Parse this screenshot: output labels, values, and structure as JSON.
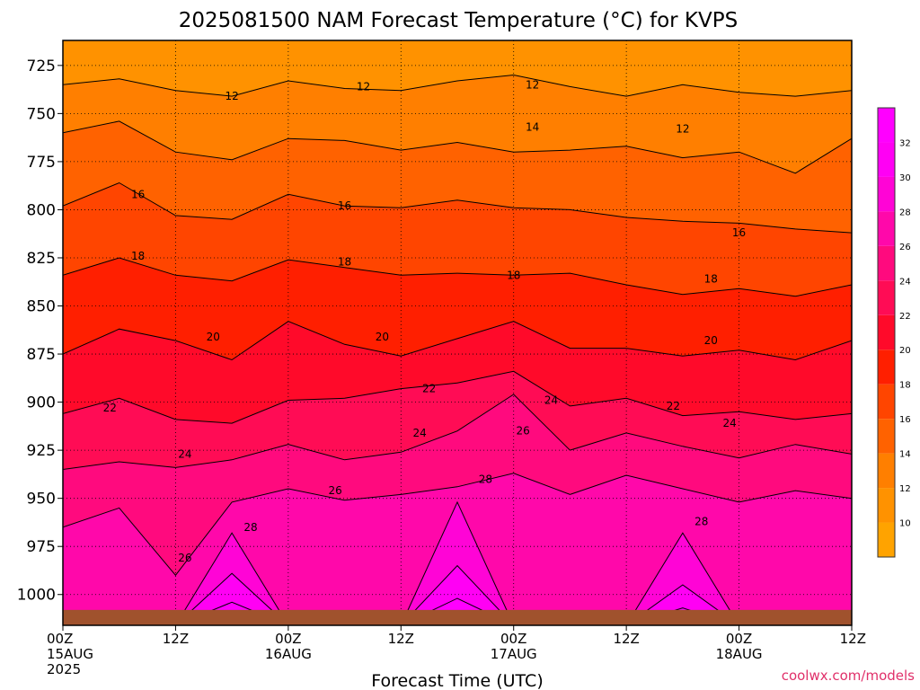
{
  "chart_data": {
    "type": "heatmap",
    "title": "2025081500 NAM Forecast Temperature (°C) for KVPS",
    "xlabel": "Forecast Time (UTC)",
    "ylabel": "",
    "credit": "coolwx.com/models",
    "y_axis": {
      "ticks": [
        "725",
        "750",
        "775",
        "800",
        "825",
        "850",
        "875",
        "900",
        "925",
        "950",
        "975",
        "1000"
      ],
      "range_hpa": [
        712,
        1016
      ],
      "direction": "pressure increases downward"
    },
    "x_axis": {
      "ticks": [
        {
          "line1": "00Z",
          "line2": "15AUG",
          "line3": "2025"
        },
        {
          "line1": "12Z",
          "line2": "",
          "line3": ""
        },
        {
          "line1": "00Z",
          "line2": "16AUG",
          "line3": ""
        },
        {
          "line1": "12Z",
          "line2": "",
          "line3": ""
        },
        {
          "line1": "00Z",
          "line2": "17AUG",
          "line3": ""
        },
        {
          "line1": "12Z",
          "line2": "",
          "line3": ""
        },
        {
          "line1": "00Z",
          "line2": "18AUG",
          "line3": ""
        },
        {
          "line1": "12Z",
          "line2": "",
          "line3": ""
        }
      ],
      "range_hours": [
        0,
        84
      ]
    },
    "colorbar": {
      "labels": [
        "10",
        "12",
        "14",
        "16",
        "18",
        "20",
        "22",
        "24",
        "26",
        "28",
        "30",
        "32"
      ],
      "bands": [
        {
          "min": 8,
          "max": 10,
          "color": "#ffa300"
        },
        {
          "min": 10,
          "max": 12,
          "color": "#ff9200"
        },
        {
          "min": 12,
          "max": 14,
          "color": "#ff7f00"
        },
        {
          "min": 14,
          "max": 16,
          "color": "#ff6200"
        },
        {
          "min": 16,
          "max": 18,
          "color": "#ff4500"
        },
        {
          "min": 18,
          "max": 20,
          "color": "#ff1f00"
        },
        {
          "min": 20,
          "max": 22,
          "color": "#ff0a2a"
        },
        {
          "min": 22,
          "max": 24,
          "color": "#ff0c55"
        },
        {
          "min": 24,
          "max": 26,
          "color": "#ff0a7e"
        },
        {
          "min": 26,
          "max": 28,
          "color": "#ff08aa"
        },
        {
          "min": 28,
          "max": 30,
          "color": "#ff04d6"
        },
        {
          "min": 30,
          "max": 32,
          "color": "#ff00f4"
        },
        {
          "min": 32,
          "max": 34,
          "color": "#ff00ff"
        }
      ]
    },
    "isotherms_hpa_by_hour": {
      "hours": [
        0,
        6,
        12,
        18,
        24,
        30,
        36,
        42,
        48,
        54,
        60,
        66,
        72,
        78,
        84
      ],
      "t12": [
        735,
        732,
        738,
        741,
        733,
        737,
        738,
        733,
        730,
        736,
        741,
        735,
        739,
        741,
        738
      ],
      "t14": [
        760,
        754,
        770,
        774,
        763,
        764,
        769,
        765,
        770,
        769,
        767,
        773,
        770,
        781,
        763
      ],
      "t16": [
        798,
        786,
        803,
        805,
        792,
        798,
        799,
        795,
        799,
        800,
        804,
        806,
        807,
        810,
        812
      ],
      "t18": [
        834,
        825,
        834,
        837,
        826,
        830,
        834,
        833,
        834,
        833,
        839,
        844,
        841,
        845,
        839
      ],
      "t20": [
        875,
        862,
        868,
        878,
        858,
        870,
        876,
        867,
        858,
        872,
        872,
        876,
        873,
        878,
        868
      ],
      "t22": [
        906,
        898,
        909,
        911,
        899,
        898,
        893,
        890,
        884,
        902,
        898,
        907,
        905,
        909,
        906
      ],
      "t24": [
        935,
        931,
        934,
        930,
        922,
        930,
        926,
        915,
        896,
        925,
        916,
        923,
        929,
        922,
        927
      ],
      "t26": [
        965,
        955,
        990,
        952,
        945,
        951,
        948,
        944,
        937,
        948,
        938,
        945,
        952,
        946,
        950
      ],
      "t28": [
        1016,
        1016,
        1016,
        968,
        1016,
        1016,
        1016,
        952,
        1016,
        1016,
        1016,
        968,
        1016,
        1016,
        1016
      ],
      "t30": [
        1016,
        1016,
        1016,
        989,
        1016,
        1016,
        1016,
        985,
        1016,
        1016,
        1016,
        995,
        1016,
        1016,
        1016
      ],
      "t32": [
        1016,
        1016,
        1016,
        1004,
        1016,
        1016,
        1016,
        1002,
        1016,
        1016,
        1016,
        1007,
        1016,
        1016,
        1016
      ]
    },
    "contour_labels": [
      {
        "text": "12",
        "hour": 18,
        "p": 741
      },
      {
        "text": "12",
        "hour": 32,
        "p": 736
      },
      {
        "text": "12",
        "hour": 50,
        "p": 735
      },
      {
        "text": "12",
        "hour": 66,
        "p": 758
      },
      {
        "text": "14",
        "hour": 50,
        "p": 757
      },
      {
        "text": "16",
        "hour": 8,
        "p": 792
      },
      {
        "text": "16",
        "hour": 30,
        "p": 798
      },
      {
        "text": "16",
        "hour": 72,
        "p": 812
      },
      {
        "text": "18",
        "hour": 8,
        "p": 824
      },
      {
        "text": "18",
        "hour": 30,
        "p": 827
      },
      {
        "text": "18",
        "hour": 48,
        "p": 834
      },
      {
        "text": "18",
        "hour": 69,
        "p": 836
      },
      {
        "text": "20",
        "hour": 16,
        "p": 866
      },
      {
        "text": "20",
        "hour": 34,
        "p": 866
      },
      {
        "text": "20",
        "hour": 69,
        "p": 868
      },
      {
        "text": "22",
        "hour": 5,
        "p": 903
      },
      {
        "text": "22",
        "hour": 39,
        "p": 893
      },
      {
        "text": "22",
        "hour": 65,
        "p": 902
      },
      {
        "text": "24",
        "hour": 13,
        "p": 927
      },
      {
        "text": "24",
        "hour": 38,
        "p": 916
      },
      {
        "text": "24",
        "hour": 52,
        "p": 899
      },
      {
        "text": "24",
        "hour": 71,
        "p": 911
      },
      {
        "text": "26",
        "hour": 13,
        "p": 981
      },
      {
        "text": "26",
        "hour": 29,
        "p": 946
      },
      {
        "text": "26",
        "hour": 49,
        "p": 915
      },
      {
        "text": "28",
        "hour": 20,
        "p": 965
      },
      {
        "text": "28",
        "hour": 45,
        "p": 940
      },
      {
        "text": "28",
        "hour": 68,
        "p": 962
      }
    ],
    "ground": {
      "color": "#a0522d",
      "surface_hpa": 1008
    }
  }
}
